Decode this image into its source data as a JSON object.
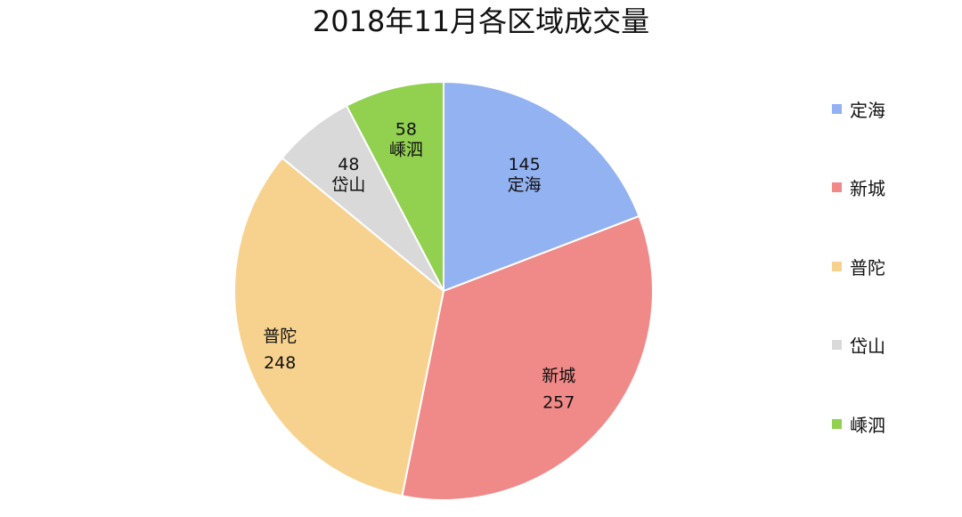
{
  "chart_data": {
    "type": "pie",
    "title": "2018年11月各区域成交量",
    "categories": [
      "定海",
      "新城",
      "普陀",
      "岱山",
      "嵊泗"
    ],
    "values": [
      145,
      257,
      248,
      48,
      58
    ],
    "colors": [
      "#93b2f2",
      "#f08a88",
      "#f7d28f",
      "#d9d9d9",
      "#92d050"
    ],
    "data_labels": [
      {
        "value": "145",
        "name": "定海"
      },
      {
        "value": "257",
        "name": "新城"
      },
      {
        "value": "248",
        "name": "普陀"
      },
      {
        "value": "48",
        "name": "岱山"
      },
      {
        "value": "58",
        "name": "嵊泗"
      }
    ],
    "legend": {
      "position": "right",
      "items": [
        "定海",
        "新城",
        "普陀",
        "岱山",
        "嵊泗"
      ]
    }
  }
}
